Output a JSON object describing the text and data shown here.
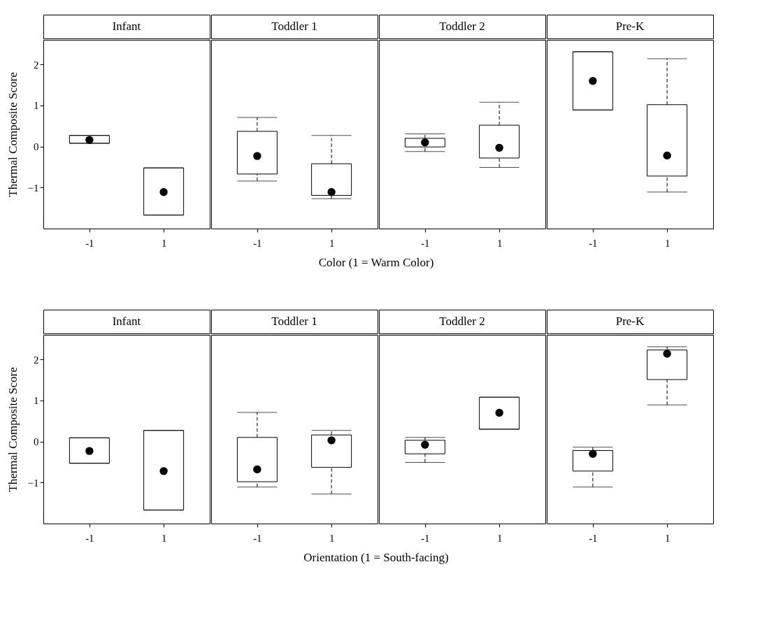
{
  "chart_data": [
    {
      "type": "box",
      "title": "Infant",
      "categories": [
        "-1",
        "1"
      ],
      "ylabel": "Thermal Composite Score",
      "ylim": [
        -2,
        2.6
      ],
      "yticks": [
        -1,
        0,
        1,
        2
      ],
      "line_style": "dashed",
      "boxes": [
        {
          "low": 0.08,
          "q1": 0.08,
          "median": 0.16,
          "q3": 0.27,
          "high": 0.27
        },
        {
          "low": -1.67,
          "q1": -1.67,
          "median": -1.11,
          "q3": -0.52,
          "high": -0.52
        }
      ]
    },
    {
      "type": "box",
      "title": "Toddler 1",
      "annotations": [
        "Color (1 = Warm Color)"
      ],
      "categories": [
        "-1",
        "1"
      ],
      "ylim": [
        -2,
        2.6
      ],
      "tick_labels": "x",
      "line_style": "dashed",
      "boxes": [
        {
          "low": -0.84,
          "q1": -0.67,
          "median": -0.23,
          "q3": 0.37,
          "high": 0.71
        },
        {
          "low": -1.27,
          "q1": -1.19,
          "median": -1.11,
          "q3": -0.42,
          "high": 0.27
        }
      ]
    },
    {
      "type": "box",
      "title": "Toddler 2",
      "categories": [
        "-1",
        "1"
      ],
      "ylim": [
        -2,
        2.6
      ],
      "tick_labels": "x",
      "line_style": "dashed",
      "boxes": [
        {
          "low": -0.12,
          "q1": -0.01,
          "median": 0.1,
          "q3": 0.2,
          "high": 0.31
        },
        {
          "low": -0.51,
          "q1": -0.28,
          "median": -0.03,
          "q3": 0.52,
          "high": 1.08
        }
      ]
    },
    {
      "type": "box",
      "title": "Pre-K",
      "categories": [
        "-1",
        "1"
      ],
      "ylim": [
        -2,
        2.6
      ],
      "tick_labels": "x",
      "line_style": "dashed",
      "boxes": [
        {
          "low": 0.89,
          "q1": 0.89,
          "median": 1.6,
          "q3": 2.31,
          "high": 2.31
        },
        {
          "low": -1.11,
          "q1": -0.72,
          "median": -0.22,
          "q3": 1.02,
          "high": 2.14
        }
      ]
    },
    {
      "type": "box",
      "title": "Infant",
      "categories": [
        "-1",
        "1"
      ],
      "ylabel": "Thermal Composite Score",
      "ylim": [
        -2,
        2.6
      ],
      "yticks": [
        -1,
        0,
        1,
        2
      ],
      "line_style": "dashed",
      "boxes": [
        {
          "low": -0.53,
          "q1": -0.53,
          "median": -0.23,
          "q3": 0.09,
          "high": 0.09
        },
        {
          "low": -1.67,
          "q1": -1.67,
          "median": -0.72,
          "q3": 0.27,
          "high": 0.27
        }
      ]
    },
    {
      "type": "box",
      "title": "Toddler 1",
      "annotations": [
        "Orientation (1 = South-facing)"
      ],
      "categories": [
        "-1",
        "1"
      ],
      "ylim": [
        -2,
        2.6
      ],
      "tick_labels": "x",
      "line_style": "dashed",
      "boxes": [
        {
          "low": -1.11,
          "q1": -0.98,
          "median": -0.68,
          "q3": 0.1,
          "high": 0.71
        },
        {
          "low": -1.28,
          "q1": -0.63,
          "median": 0.03,
          "q3": 0.16,
          "high": 0.27
        }
      ]
    },
    {
      "type": "box",
      "title": "Toddler 2",
      "categories": [
        "-1",
        "1"
      ],
      "ylim": [
        -2,
        2.6
      ],
      "tick_labels": "x",
      "line_style": "dashed",
      "boxes": [
        {
          "low": -0.51,
          "q1": -0.3,
          "median": -0.08,
          "q3": 0.03,
          "high": 0.1
        },
        {
          "low": 0.3,
          "q1": 0.3,
          "median": 0.7,
          "q3": 1.08,
          "high": 1.08
        }
      ]
    },
    {
      "type": "box",
      "title": "Pre-K",
      "categories": [
        "-1",
        "1"
      ],
      "ylim": [
        -2,
        2.6
      ],
      "tick_labels": "x",
      "line_style": "dashed",
      "boxes": [
        {
          "low": -1.11,
          "q1": -0.72,
          "median": -0.3,
          "q3": -0.22,
          "high": -0.14
        },
        {
          "low": 0.89,
          "q1": 1.51,
          "median": 2.14,
          "q3": 2.23,
          "high": 2.31
        }
      ]
    }
  ]
}
